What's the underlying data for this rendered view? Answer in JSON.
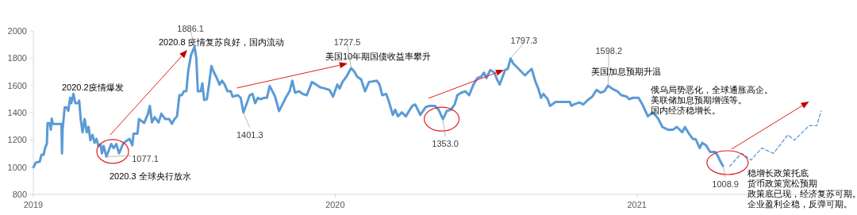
{
  "chart_data": {
    "type": "line",
    "xlim": [
      2019,
      2021.65
    ],
    "xticks": [
      2019,
      2020,
      2021
    ],
    "ylim": [
      800,
      2000
    ],
    "yticks": [
      800,
      1000,
      1200,
      1400,
      1600,
      1800,
      2000
    ],
    "marker": "none",
    "series": [
      {
        "color": "#5b9bd5",
        "line_style": "solid",
        "x": [
          2019.001,
          2019.008,
          2019.021,
          2019.027,
          2019.034,
          2019.039,
          2019.045,
          2019.047,
          2019.054,
          2019.058,
          2019.061,
          2019.065,
          2019.093,
          2019.095,
          2019.097,
          2019.104,
          2019.11,
          2019.116,
          2019.122,
          2019.126,
          2019.133,
          2019.139,
          2019.148,
          2019.152,
          2019.157,
          2019.163,
          2019.17,
          2019.177,
          2019.183,
          2019.189,
          2019.196,
          2019.203,
          2019.209,
          2019.216,
          2019.223,
          2019.227,
          2019.233,
          2019.242,
          2019.258,
          2019.266,
          2019.275,
          2019.284,
          2019.297,
          2019.306,
          2019.319,
          2019.328,
          2019.332,
          2019.345,
          2019.35,
          2019.367,
          2019.38,
          2019.386,
          2019.393,
          2019.402,
          2019.415,
          2019.424,
          2019.437,
          2019.45,
          2019.459,
          2019.468,
          2019.476,
          2019.484,
          2019.492,
          2019.499,
          2019.507,
          2019.513,
          2019.522,
          2019.534,
          2019.54,
          2019.545,
          2019.555,
          2019.56,
          2019.566,
          2019.575,
          2019.582,
          2019.59,
          2019.599,
          2019.608,
          2019.617,
          2019.625,
          2019.634,
          2019.643,
          2019.654,
          2019.66,
          2019.678,
          2019.687,
          2019.696,
          2019.704,
          2019.717,
          2019.726,
          2019.735,
          2019.744,
          2019.752,
          2019.766,
          2019.774,
          2019.783,
          2019.792,
          2019.801,
          2019.814,
          2019.823,
          2019.836,
          2019.849,
          2019.858,
          2019.867,
          2019.88,
          2019.893,
          2019.906,
          2019.923,
          2019.937,
          2019.95,
          2019.967,
          2019.981,
          2019.993,
          2020.007,
          2020.015,
          2020.024,
          2020.037,
          2020.053,
          2020.064,
          2020.073,
          2020.086,
          2020.099,
          2020.112,
          2020.138,
          2020.147,
          2020.156,
          2020.169,
          2020.177,
          2020.191,
          2020.199,
          2020.208,
          2020.221,
          2020.234,
          2020.247,
          2020.256,
          2020.265,
          2020.274,
          2020.282,
          2020.3,
          2020.313,
          2020.33,
          2020.343,
          2020.357,
          2020.37,
          2020.383,
          2020.396,
          2020.405,
          2020.418,
          2020.431,
          2020.444,
          2020.458,
          2020.471,
          2020.484,
          2020.493,
          2020.501,
          2020.514,
          2020.528,
          2020.536,
          2020.545,
          2020.563,
          2020.572,
          2020.581,
          2020.59,
          2020.603,
          2020.616,
          2020.629,
          2020.642,
          2020.651,
          2020.664,
          2020.673,
          2020.682,
          2020.69,
          2020.704,
          2020.712,
          2020.73,
          2020.752,
          2020.778,
          2020.782,
          2020.791,
          2020.809,
          2020.822,
          2020.835,
          2020.852,
          2020.866,
          2020.879,
          2020.892,
          2020.904,
          2020.917,
          2020.935,
          2020.948,
          2020.966,
          2020.974,
          2020.987,
          2021.005,
          2021.018,
          2021.036,
          2021.053,
          2021.071,
          2021.084,
          2021.102,
          2021.119,
          2021.132,
          2021.15,
          2021.159,
          2021.172,
          2021.185,
          2021.194,
          2021.208,
          2021.216,
          2021.229,
          2021.242,
          2021.259,
          2021.268,
          2021.276,
          2021.285
        ],
        "values": [
          1000,
          1033,
          1040,
          1091,
          1091,
          1140,
          1175,
          1323,
          1323,
          1275,
          1356,
          1317,
          1317,
          1100,
          1275,
          1440,
          1440,
          1414,
          1509,
          1470,
          1538,
          1470,
          1470,
          1488,
          1353,
          1256,
          1353,
          1256,
          1295,
          1198,
          1237,
          1178,
          1207,
          1155,
          1168,
          1101,
          1155,
          1077.1,
          1170,
          1140,
          1170,
          1101,
          1170,
          1189,
          1207,
          1160,
          1246,
          1246,
          1353,
          1324,
          1392,
          1450,
          1328,
          1367,
          1328,
          1392,
          1353,
          1353,
          1318,
          1353,
          1373,
          1528,
          1528,
          1558,
          1558,
          1703,
          1819,
          1886.1,
          1800,
          1558,
          1558,
          1616,
          1493,
          1499,
          1606,
          1742,
          1693,
          1654,
          1606,
          1635,
          1606,
          1558,
          1558,
          1518,
          1528,
          1509,
          1401.3,
          1450,
          1528,
          1538,
          1470,
          1509,
          1499,
          1509,
          1509,
          1596,
          1558,
          1518,
          1412,
          1450,
          1509,
          1557,
          1635,
          1547,
          1557,
          1537,
          1528,
          1625,
          1606,
          1586,
          1577,
          1567,
          1518,
          1606,
          1577,
          1625,
          1664,
          1727.5,
          1700,
          1664,
          1645,
          1557,
          1625,
          1635,
          1606,
          1528,
          1538,
          1489,
          1383,
          1421,
          1373,
          1402,
          1373,
          1421,
          1450,
          1460,
          1421,
          1383,
          1441,
          1450,
          1450,
          1421,
          1353.0,
          1412,
          1421,
          1460,
          1528,
          1547,
          1557,
          1528,
          1606,
          1654,
          1664,
          1693,
          1654,
          1713,
          1693,
          1645,
          1606,
          1713,
          1722,
          1797.3,
          1761,
          1732,
          1703,
          1674,
          1703,
          1722,
          1625,
          1577,
          1509,
          1538,
          1499,
          1450,
          1479,
          1479,
          1479,
          1450,
          1460,
          1475,
          1460,
          1489,
          1518,
          1567,
          1547,
          1557,
          1598.2,
          1577,
          1557,
          1528,
          1518,
          1499,
          1509,
          1509,
          1460,
          1373,
          1402,
          1353,
          1295,
          1275,
          1275,
          1295,
          1256,
          1295,
          1246,
          1207,
          1207,
          1140,
          1178,
          1160,
          1111,
          1111,
          1082,
          1043,
          1008.9
        ]
      },
      {
        "color": "#5b9bd5",
        "line_style": "dashed",
        "x": [
          2021.307,
          2021.325,
          2021.347,
          2021.378,
          2021.413,
          2021.452,
          2021.5,
          2021.522,
          2021.57,
          2021.596,
          2021.61
        ],
        "values": [
          1005,
          1052,
          1101,
          1052,
          1140,
          1101,
          1237,
          1198,
          1305,
          1305,
          1412
        ]
      }
    ],
    "annotations": [
      "2020.2疫情爆发",
      "2020.3 全球央行放水",
      "2020.8 疫情复苏良好，国内流动",
      "美国10年期国债收益率攀升",
      "美国加息预期升温",
      "俄乌局势恶化，全球通胀高企。",
      "美联储加息预期增强等。",
      "国内经济稳增长。",
      "稳增长政策托底",
      "货币政策宽松预期",
      "政策底已现，经济复苏可期。",
      "企业盈利企稳，反弹可期。",
      {
        "text": "1886.1",
        "x": 2019.534,
        "y": 1886.1
      },
      {
        "text": "1077.1",
        "x": 2019.242,
        "y": 1077.1
      },
      {
        "text": "1401.3",
        "x": 2019.696,
        "y": 1401.3
      },
      {
        "text": "1727.5",
        "x": 2020.053,
        "y": 1727.5
      },
      {
        "text": "1353.0",
        "x": 2020.357,
        "y": 1353.0
      },
      {
        "text": "1797.3",
        "x": 2020.581,
        "y": 1797.3
      },
      {
        "text": "1598.2",
        "x": 2020.904,
        "y": 1598.2
      },
      {
        "text": "1008.9",
        "x": 2021.285,
        "y": 1008.9
      }
    ]
  }
}
